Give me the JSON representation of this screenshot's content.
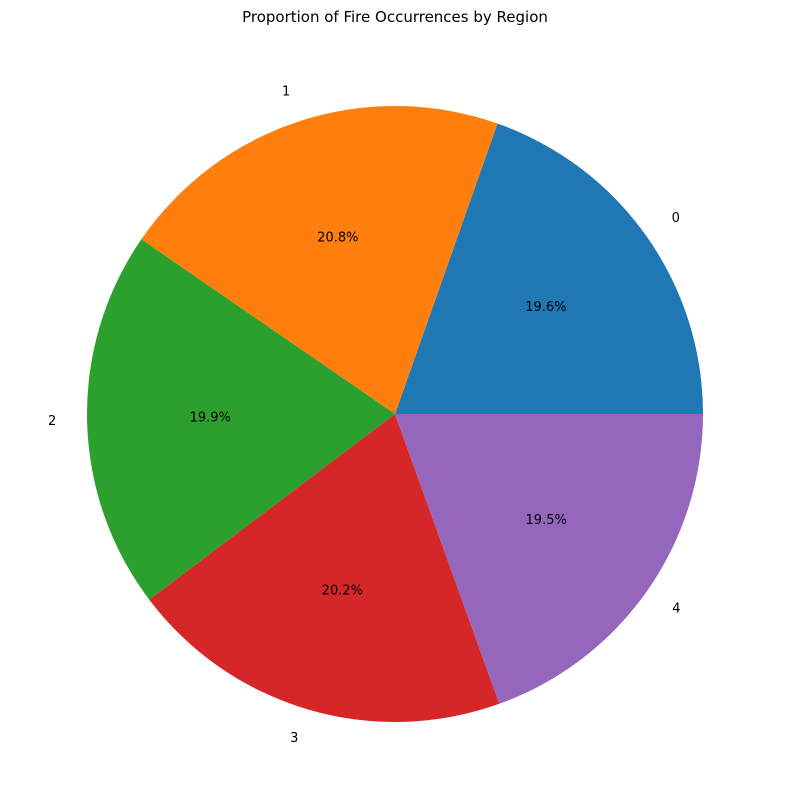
{
  "chart_data": {
    "type": "pie",
    "title": "Proportion of Fire Occurrences by Region",
    "start_angle_deg": 0,
    "direction": "counterclockwise",
    "slices": [
      {
        "label": "0",
        "value": 19.6,
        "pct_label": "19.6%",
        "color": "#1f77b4"
      },
      {
        "label": "1",
        "value": 20.8,
        "pct_label": "20.8%",
        "color": "#ff7f0e"
      },
      {
        "label": "2",
        "value": 19.9,
        "pct_label": "19.9%",
        "color": "#2ca02c"
      },
      {
        "label": "3",
        "value": 20.2,
        "pct_label": "20.2%",
        "color": "#d62728"
      },
      {
        "label": "4",
        "value": 19.5,
        "pct_label": "19.5%",
        "color": "#9467bd"
      }
    ]
  }
}
